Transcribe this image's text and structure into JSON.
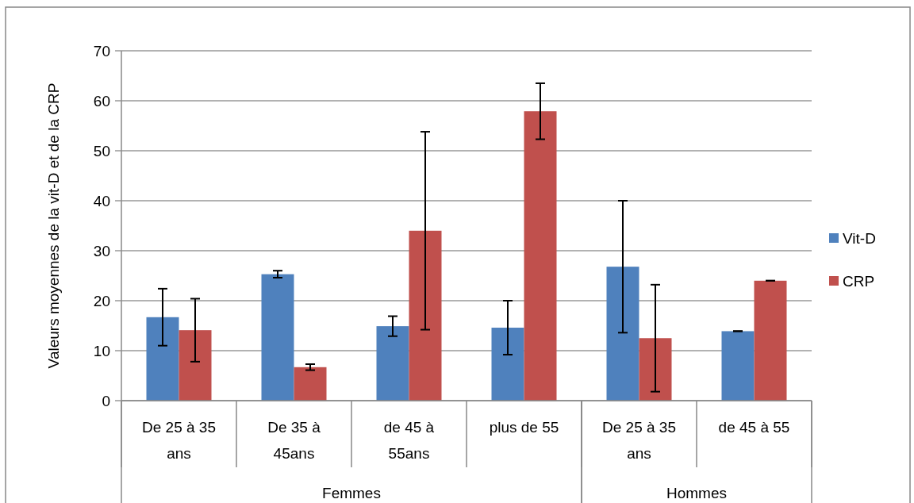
{
  "chart_data": {
    "type": "bar",
    "ylabel": "Valeurs moyennes de la vit-D et de la CRP",
    "categories": [
      "De 25 à 35 ans",
      "De 35 à 45ans",
      "de 45 à 55ans",
      "plus de 55",
      "De 25 à 35 ans",
      "de 45 à 55"
    ],
    "series": [
      {
        "name": "Vit-D",
        "color": "#4f81bd",
        "values": [
          16.7,
          25.3,
          14.9,
          14.6,
          26.8,
          13.9
        ],
        "errors": [
          5.7,
          0.7,
          2.0,
          5.4,
          13.2,
          0
        ]
      },
      {
        "name": "CRP",
        "color": "#c0504d",
        "values": [
          14.1,
          6.7,
          34.0,
          57.9,
          12.5,
          24.0
        ],
        "errors": [
          6.3,
          0.6,
          19.8,
          5.6,
          10.7,
          0
        ]
      }
    ],
    "ylim": [
      0,
      70
    ],
    "yticks": [
      0,
      10,
      20,
      30,
      40,
      50,
      60,
      70
    ],
    "grid": "y",
    "legend": "right",
    "annotations": [
      "Femmes",
      "Hommes"
    ]
  }
}
